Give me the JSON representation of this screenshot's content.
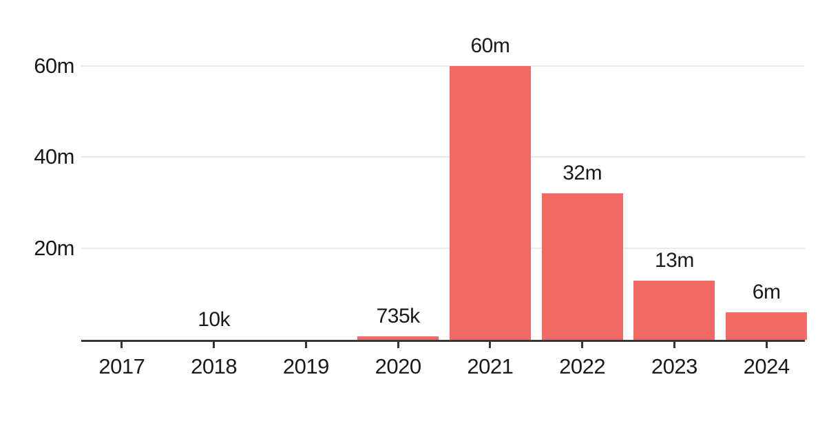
{
  "chart": {
    "background_color": "#ffffff"
  },
  "chart_data": {
    "type": "bar",
    "title": "",
    "xlabel": "",
    "ylabel": "",
    "categories": [
      "2017",
      "2018",
      "2019",
      "2020",
      "2021",
      "2022",
      "2023",
      "2024"
    ],
    "values": [
      null,
      10000,
      null,
      735000,
      60000000,
      32000000,
      13000000,
      6000000
    ],
    "bar_labels": [
      "",
      "10k",
      "",
      "735k",
      "60m",
      "32m",
      "13m",
      "6m"
    ],
    "ylim": [
      0,
      63000000
    ],
    "y_ticks": [
      {
        "value": 20000000,
        "label": "20m"
      },
      {
        "value": 40000000,
        "label": "40m"
      },
      {
        "value": 60000000,
        "label": "60m"
      }
    ],
    "grid": "horizontal-only",
    "legend": "none",
    "colors": {
      "bar": "#f26a66",
      "axis": "#363636",
      "gridline": "#e9e9e9",
      "text": "#1a1a1a"
    }
  }
}
